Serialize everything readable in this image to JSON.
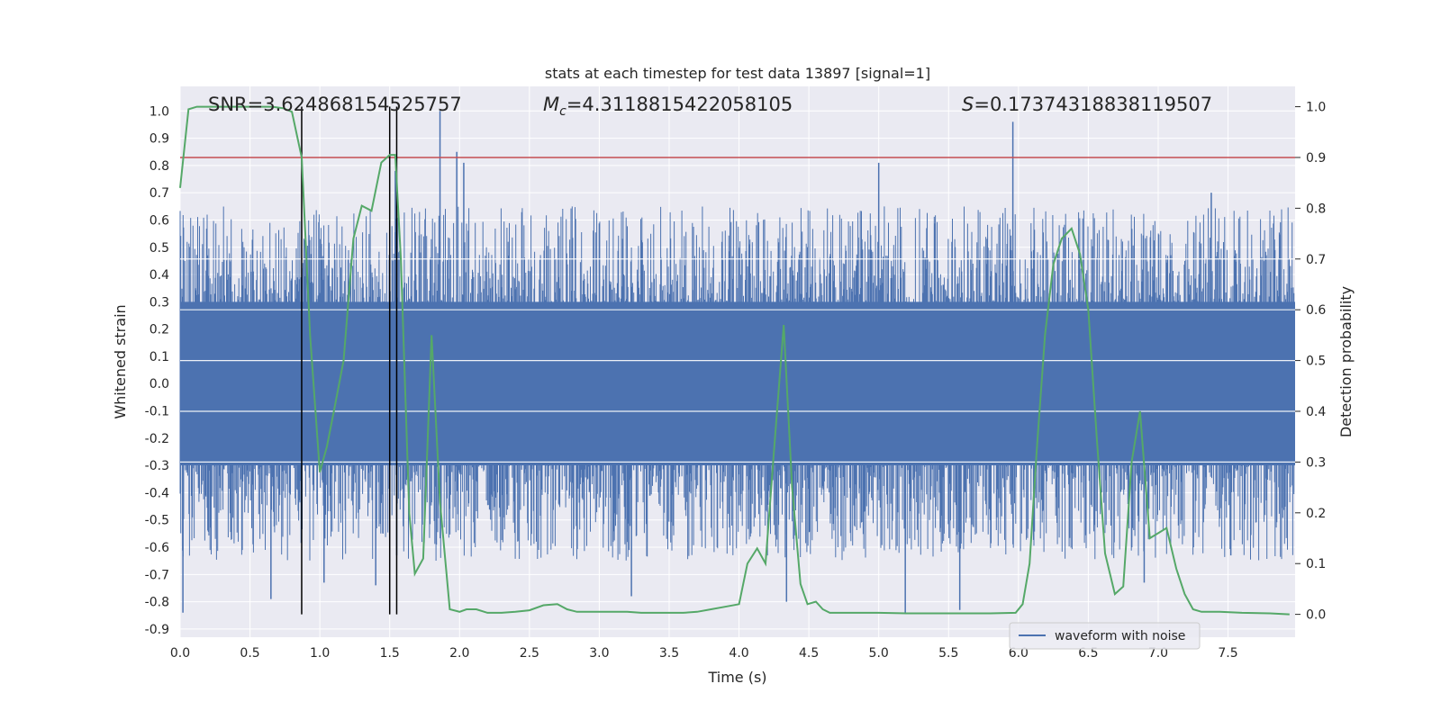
{
  "chart_data": {
    "type": "line",
    "title": "stats at each timestep for test data 13897 [signal=1]",
    "xlabel": "Time (s)",
    "ylabel": "Whitened strain",
    "y2label": "Detection probability",
    "xlim": [
      0.0,
      7.98
    ],
    "ylim": [
      -0.93,
      1.09
    ],
    "y2lim": [
      -0.045,
      1.04
    ],
    "x_ticks": [
      "0.0",
      "0.5",
      "1.0",
      "1.5",
      "2.0",
      "2.5",
      "3.0",
      "3.5",
      "4.0",
      "4.5",
      "5.0",
      "5.5",
      "6.0",
      "6.5",
      "7.0",
      "7.5"
    ],
    "y_ticks": [
      "1.0",
      "0.9",
      "0.8",
      "0.7",
      "0.6",
      "0.5",
      "0.4",
      "0.3",
      "0.2",
      "0.1",
      "0.0",
      "-0.1",
      "-0.2",
      "-0.3",
      "-0.4",
      "-0.5",
      "-0.6",
      "-0.7",
      "-0.8",
      "-0.9"
    ],
    "y2_ticks": [
      "1.0",
      "0.9",
      "0.8",
      "0.7",
      "0.6",
      "0.5",
      "0.4",
      "0.3",
      "0.2",
      "0.1",
      "0.0"
    ],
    "grid": true,
    "legend_position": "bottom-right",
    "annotations": {
      "snr": "SNR=3.624868154525757",
      "mc_symbol": "M",
      "mc_sub": "c",
      "mc_value": "=4.3118815422058105",
      "s_symbol": "S",
      "s_value": "=0.17374318838119507"
    },
    "threshold": 0.9,
    "vlines": [
      0.87,
      1.5,
      1.55
    ],
    "series": [
      {
        "name": "waveform with noise",
        "color": "#4c72b0",
        "kind": "noise",
        "core_band": [
          -0.3,
          0.3
        ],
        "spikes": [
          {
            "x": 0.02,
            "y": -0.84
          },
          {
            "x": 0.65,
            "y": -0.79
          },
          {
            "x": 1.03,
            "y": -0.73
          },
          {
            "x": 1.4,
            "y": -0.74
          },
          {
            "x": 1.54,
            "y": 0.78
          },
          {
            "x": 1.55,
            "y": -0.63
          },
          {
            "x": 1.86,
            "y": 1.0
          },
          {
            "x": 1.98,
            "y": 0.85
          },
          {
            "x": 2.03,
            "y": 0.81
          },
          {
            "x": 3.23,
            "y": -0.78
          },
          {
            "x": 4.34,
            "y": -0.8
          },
          {
            "x": 5.0,
            "y": 0.81
          },
          {
            "x": 5.19,
            "y": -0.84
          },
          {
            "x": 5.58,
            "y": -0.83
          },
          {
            "x": 5.96,
            "y": 0.96
          },
          {
            "x": 7.38,
            "y": 0.7
          },
          {
            "x": 7.52,
            "y": -0.63
          },
          {
            "x": 6.9,
            "y": -0.73
          }
        ]
      },
      {
        "name": "",
        "color": "#55a868",
        "kind": "probability",
        "x": [
          0.0,
          0.06,
          0.12,
          0.3,
          0.5,
          0.66,
          0.74,
          0.8,
          0.87,
          0.93,
          1.0,
          1.05,
          1.1,
          1.17,
          1.24,
          1.3,
          1.37,
          1.44,
          1.5,
          1.54,
          1.58,
          1.64,
          1.68,
          1.74,
          1.8,
          1.86,
          1.93,
          2.0,
          2.05,
          2.12,
          2.2,
          2.3,
          2.4,
          2.5,
          2.6,
          2.7,
          2.77,
          2.84,
          2.9,
          3.0,
          3.1,
          3.2,
          3.3,
          3.4,
          3.5,
          3.6,
          3.7,
          3.8,
          3.9,
          4.0,
          4.06,
          4.13,
          4.19,
          4.25,
          4.32,
          4.38,
          4.44,
          4.49,
          4.55,
          4.6,
          4.65,
          4.7,
          4.8,
          4.9,
          5.0,
          5.2,
          5.4,
          5.6,
          5.8,
          5.98,
          6.03,
          6.08,
          6.13,
          6.19,
          6.25,
          6.31,
          6.38,
          6.44,
          6.5,
          6.56,
          6.62,
          6.69,
          6.75,
          6.81,
          6.87,
          6.94,
          7.0,
          7.06,
          7.13,
          7.19,
          7.25,
          7.31,
          7.38,
          7.44,
          7.6,
          7.8,
          7.94
        ],
        "y": [
          0.84,
          0.995,
          1.0,
          1.0,
          1.0,
          1.0,
          0.997,
          0.99,
          0.9,
          0.55,
          0.28,
          0.33,
          0.4,
          0.5,
          0.74,
          0.805,
          0.795,
          0.89,
          0.905,
          0.905,
          0.7,
          0.2,
          0.08,
          0.11,
          0.55,
          0.22,
          0.01,
          0.005,
          0.01,
          0.01,
          0.003,
          0.003,
          0.005,
          0.008,
          0.018,
          0.02,
          0.01,
          0.005,
          0.005,
          0.005,
          0.005,
          0.005,
          0.003,
          0.003,
          0.003,
          0.003,
          0.005,
          0.01,
          0.015,
          0.02,
          0.1,
          0.13,
          0.1,
          0.32,
          0.57,
          0.25,
          0.06,
          0.02,
          0.025,
          0.01,
          0.003,
          0.003,
          0.003,
          0.003,
          0.003,
          0.002,
          0.002,
          0.002,
          0.002,
          0.003,
          0.02,
          0.1,
          0.32,
          0.55,
          0.69,
          0.74,
          0.76,
          0.71,
          0.6,
          0.35,
          0.12,
          0.04,
          0.055,
          0.3,
          0.4,
          0.15,
          0.16,
          0.17,
          0.09,
          0.04,
          0.01,
          0.005,
          0.005,
          0.005,
          0.003,
          0.002,
          0.0
        ]
      }
    ],
    "legend": [
      "waveform with noise"
    ]
  },
  "colors": {
    "plot_background": "#eaeaf2",
    "grid": "#ffffff",
    "strain": "#4c72b0",
    "probability": "#55a868",
    "threshold": "#c44e52",
    "vline": "#000000"
  }
}
